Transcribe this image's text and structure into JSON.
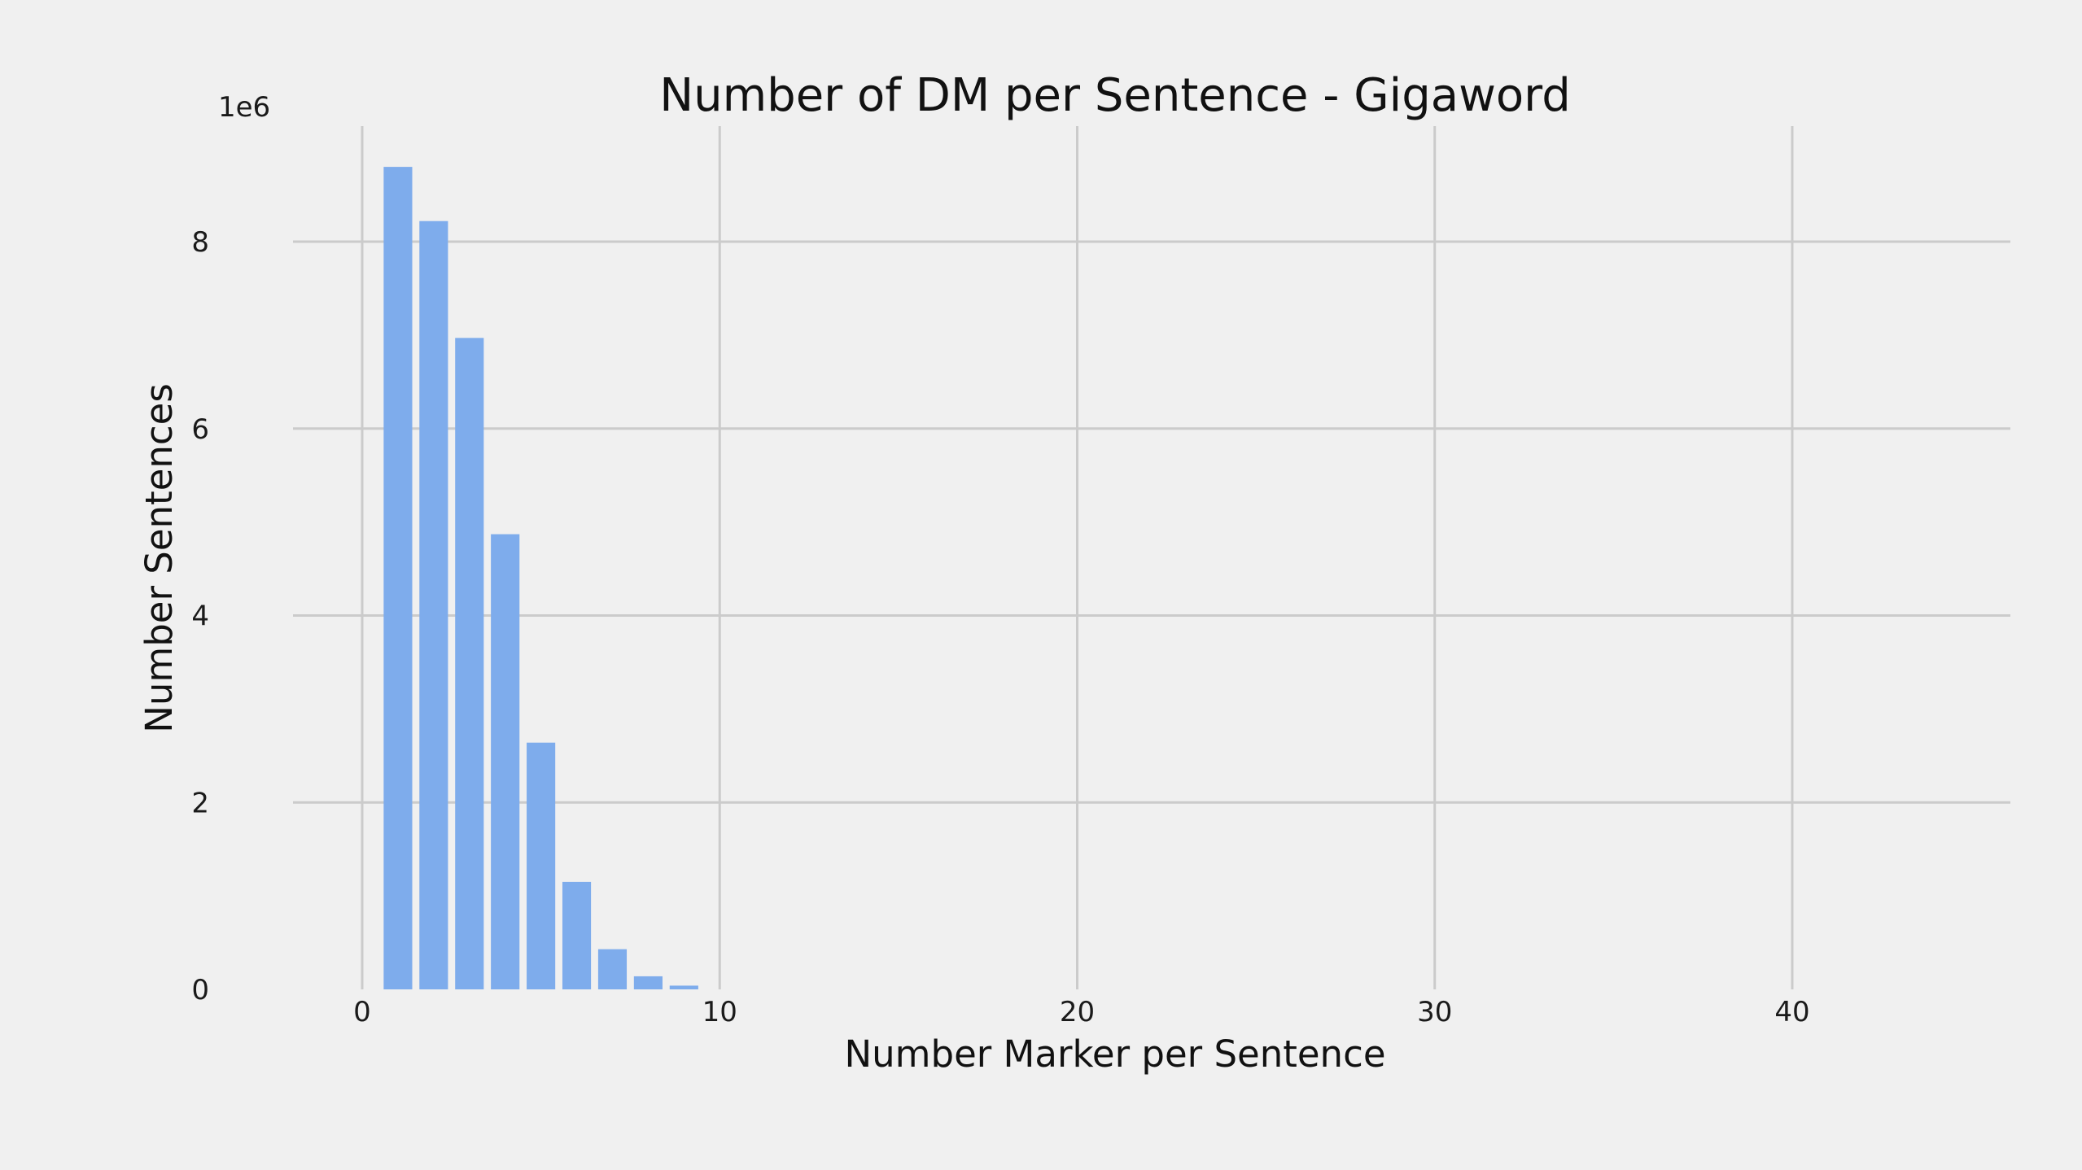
{
  "chart_data": {
    "type": "bar",
    "title": "Number of DM per Sentence - Gigaword",
    "xlabel": "Number Marker per Sentence",
    "ylabel": "Number Sentences",
    "y_scale_label": "1e6",
    "x": [
      1,
      2,
      3,
      4,
      5,
      6,
      7,
      8,
      9
    ],
    "values": [
      8.8,
      8.22,
      6.97,
      4.87,
      2.64,
      1.15,
      0.43,
      0.14,
      0.04
    ],
    "xlim": [
      -4.1,
      46.2
    ],
    "ylim": [
      0,
      9.2
    ],
    "xticks": [
      "0",
      "10",
      "20",
      "30",
      "40"
    ],
    "xtick_values": [
      0,
      10,
      20,
      30,
      40
    ],
    "yticks": [
      "0",
      "2",
      "4",
      "6",
      "8"
    ],
    "ytick_values": [
      0,
      2,
      4,
      6,
      8
    ],
    "grid": true,
    "bar_color": "#7eacec",
    "background_color": "#f0f0f0",
    "grid_color": "#cbcbcb"
  }
}
